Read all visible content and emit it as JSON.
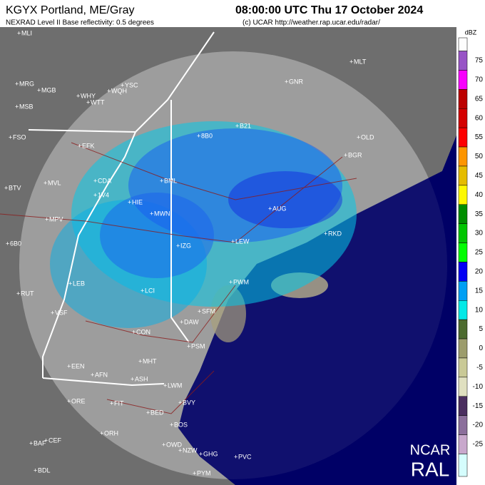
{
  "header": {
    "station": "KGYX Portland, ME/Gray",
    "time": "08:00:00 UTC Thu 17 October 2024",
    "product": "NEXRAD Level II Base reflectivity: 0.5 degrees",
    "credit": "(c) UCAR http://weather.rap.ucar.edu/radar/"
  },
  "scale": {
    "unit": "dBZ",
    "above_color": "#fdfdfd",
    "below_color": "#d5fdfd",
    "levels": [
      {
        "value": 75,
        "color": "#9854c6"
      },
      {
        "value": 70,
        "color": "#f800fd"
      },
      {
        "value": 65,
        "color": "#bc0000"
      },
      {
        "value": 60,
        "color": "#d40000"
      },
      {
        "value": 55,
        "color": "#fd0000"
      },
      {
        "value": 50,
        "color": "#fd9500"
      },
      {
        "value": 45,
        "color": "#e5bc00"
      },
      {
        "value": 40,
        "color": "#fdf802"
      },
      {
        "value": 35,
        "color": "#008e00"
      },
      {
        "value": 30,
        "color": "#01c501"
      },
      {
        "value": 25,
        "color": "#02fd02"
      },
      {
        "value": 20,
        "color": "#0300f4"
      },
      {
        "value": 15,
        "color": "#019ff4"
      },
      {
        "value": 10,
        "color": "#04e9e7"
      },
      {
        "value": 5,
        "color": "#4d6b2f"
      },
      {
        "value": 0,
        "color": "#9c9c6c"
      },
      {
        "value": -5,
        "color": "#c9c996"
      },
      {
        "value": -10,
        "color": "#e0e0c0"
      },
      {
        "value": -15,
        "color": "#4b2f60"
      },
      {
        "value": -20,
        "color": "#8b6f9b"
      },
      {
        "value": -25,
        "color": "#c8a8cc"
      }
    ]
  },
  "stations": [
    "MLI",
    "MLT",
    "YSC",
    "GNR",
    "MRG",
    "MGB",
    "WHY",
    "WQH",
    "WTT",
    "MSB",
    "B21",
    "FSO",
    "8B0",
    "OLD",
    "EFK",
    "BGR",
    "MVL",
    "CDA",
    "BML",
    "1V4",
    "HIE",
    "BTV",
    "AUG",
    "MWN",
    "MPV",
    "RKD",
    "6B0",
    "LEW",
    "IZG",
    "PWM",
    "LEB",
    "LCI",
    "RUT",
    "VSF",
    "SFM",
    "DAW",
    "CON",
    "PSM",
    "MHT",
    "EEN",
    "AFN",
    "ASH",
    "LWM",
    "ORE",
    "FIT",
    "BVY",
    "BED",
    "BOS",
    "CEF",
    "BAF",
    "ORH",
    "OWD",
    "NZW",
    "GHG",
    "BDL",
    "PYM",
    "PVC"
  ],
  "logo": {
    "line1": "NCAR",
    "line2": "RAL"
  }
}
